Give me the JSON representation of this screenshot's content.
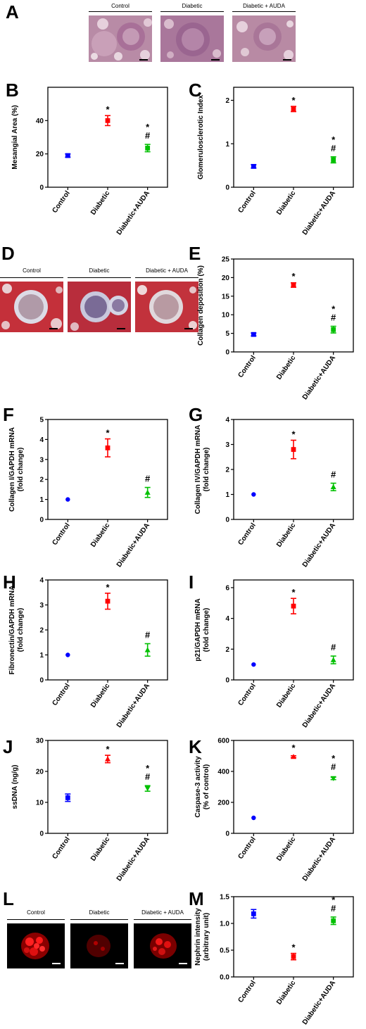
{
  "panel_letters": [
    "A",
    "B",
    "C",
    "D",
    "E",
    "F",
    "G",
    "H",
    "I",
    "J",
    "K",
    "L",
    "M"
  ],
  "micrographs": {
    "A": [
      "Control",
      "Diabetic",
      "Diabetic + AUDA"
    ],
    "D": [
      "Control",
      "Diabetic",
      "Diabetic + AUDA"
    ],
    "L": [
      "Control",
      "Diabetic",
      "Diabetic + AUDA"
    ]
  },
  "chart_data": [
    {
      "panel": "B",
      "type": "scatter",
      "ylabel": [
        "Mesangial Area (%)"
      ],
      "categories": [
        "Control",
        "Diabetic",
        "Diabetic+AUDA"
      ],
      "values": [
        19,
        40,
        23.5
      ],
      "errors": [
        1,
        3,
        2.2
      ],
      "ylim": [
        0,
        60
      ],
      "yticks": [
        0,
        20,
        40
      ],
      "annotations": [
        [],
        [
          "*"
        ],
        [
          "*",
          "#"
        ]
      ],
      "colors": [
        "#0000ff",
        "#ff0000",
        "#00c000"
      ],
      "markers": [
        "square",
        "square",
        "square"
      ]
    },
    {
      "panel": "C",
      "type": "scatter",
      "ylabel": [
        "Glomerulosclerotic Index"
      ],
      "categories": [
        "Control",
        "Diabetic",
        "Diabetic+AUDA"
      ],
      "values": [
        0.48,
        1.8,
        0.63
      ],
      "errors": [
        0.04,
        0.06,
        0.07
      ],
      "ylim": [
        0,
        2.3
      ],
      "yticks": [
        0,
        1,
        2
      ],
      "annotations": [
        [],
        [
          "*"
        ],
        [
          "*",
          "#"
        ]
      ],
      "colors": [
        "#0000ff",
        "#ff0000",
        "#00c000"
      ],
      "markers": [
        "square",
        "square",
        "square"
      ]
    },
    {
      "panel": "E",
      "type": "scatter",
      "ylabel": [
        "Collagen deposition (%)"
      ],
      "categories": [
        "Control",
        "Diabetic",
        "Diabetic+AUDA"
      ],
      "values": [
        4.7,
        18,
        6
      ],
      "errors": [
        0.4,
        0.6,
        0.9
      ],
      "ylim": [
        0,
        25
      ],
      "yticks": [
        0,
        5,
        10,
        15,
        20,
        25
      ],
      "annotations": [
        [],
        [
          "*"
        ],
        [
          "*",
          "#"
        ]
      ],
      "colors": [
        "#0000ff",
        "#ff0000",
        "#00c000"
      ],
      "markers": [
        "square",
        "square",
        "square"
      ]
    },
    {
      "panel": "F",
      "type": "scatter",
      "ylabel": [
        "Collagen I/GAPDH mRNA",
        "(fold change)"
      ],
      "categories": [
        "Control",
        "Diabetic",
        "Diabetic+AUDA"
      ],
      "values": [
        1,
        3.58,
        1.35
      ],
      "errors": [
        0,
        0.45,
        0.25
      ],
      "ylim": [
        0,
        5
      ],
      "yticks": [
        0,
        1,
        2,
        3,
        4,
        5
      ],
      "annotations": [
        [],
        [
          "*"
        ],
        [
          "#"
        ]
      ],
      "colors": [
        "#0000ff",
        "#ff0000",
        "#00c000"
      ],
      "markers": [
        "circle",
        "square",
        "triangle"
      ]
    },
    {
      "panel": "G",
      "type": "scatter",
      "ylabel": [
        "Collagen IV/GAPDH mRNA",
        "(fold change)"
      ],
      "categories": [
        "Control",
        "Diabetic",
        "Diabetic+AUDA"
      ],
      "values": [
        1,
        2.8,
        1.3
      ],
      "errors": [
        0,
        0.37,
        0.15
      ],
      "ylim": [
        0,
        4
      ],
      "yticks": [
        0,
        1,
        2,
        3,
        4
      ],
      "annotations": [
        [],
        [
          "*"
        ],
        [
          "#"
        ]
      ],
      "colors": [
        "#0000ff",
        "#ff0000",
        "#00c000"
      ],
      "markers": [
        "circle",
        "square",
        "triangle"
      ]
    },
    {
      "panel": "H",
      "type": "scatter",
      "ylabel": [
        "Fibronectin/GAPDH mRNA",
        "(fold change)"
      ],
      "categories": [
        "Control",
        "Diabetic",
        "Diabetic+AUDA"
      ],
      "values": [
        1,
        3.15,
        1.2
      ],
      "errors": [
        0,
        0.32,
        0.25
      ],
      "ylim": [
        0,
        4
      ],
      "yticks": [
        0,
        1,
        2,
        3,
        4
      ],
      "annotations": [
        [],
        [
          "*"
        ],
        [
          "#"
        ]
      ],
      "colors": [
        "#0000ff",
        "#ff0000",
        "#00c000"
      ],
      "markers": [
        "circle",
        "square",
        "triangle"
      ]
    },
    {
      "panel": "I",
      "type": "scatter",
      "ylabel": [
        "p21/GAPDH mRNA",
        "(fold change)"
      ],
      "categories": [
        "Control",
        "Diabetic",
        "Diabetic+AUDA"
      ],
      "values": [
        1,
        4.8,
        1.3
      ],
      "errors": [
        0,
        0.5,
        0.25
      ],
      "ylim": [
        0,
        6.5
      ],
      "yticks": [
        0,
        2,
        4,
        6
      ],
      "annotations": [
        [],
        [
          "*"
        ],
        [
          "#"
        ]
      ],
      "colors": [
        "#0000ff",
        "#ff0000",
        "#00c000"
      ],
      "markers": [
        "circle",
        "square",
        "triangle"
      ]
    },
    {
      "panel": "J",
      "type": "scatter",
      "ylabel": [
        "ssDNA (ng/g)"
      ],
      "categories": [
        "Control",
        "Diabetic",
        "Diabetic+AUDA"
      ],
      "values": [
        11.5,
        24,
        14.5
      ],
      "errors": [
        1.2,
        1.2,
        0.9
      ],
      "ylim": [
        0,
        30
      ],
      "yticks": [
        0,
        10,
        20,
        30
      ],
      "annotations": [
        [],
        [
          "*"
        ],
        [
          "*",
          "#"
        ]
      ],
      "colors": [
        "#0000ff",
        "#ff0000",
        "#00c000"
      ],
      "markers": [
        "square",
        "triangle",
        "triangle-down"
      ]
    },
    {
      "panel": "K",
      "type": "scatter",
      "ylabel": [
        "Caspase-3 activity",
        "(% of control)"
      ],
      "categories": [
        "Control",
        "Diabetic",
        "Diabetic+AUDA"
      ],
      "values": [
        100,
        495,
        355
      ],
      "errors": [
        0,
        6,
        8
      ],
      "ylim": [
        0,
        600
      ],
      "yticks": [
        0,
        200,
        400,
        600
      ],
      "annotations": [
        [],
        [
          "*"
        ],
        [
          "*",
          "#"
        ]
      ],
      "colors": [
        "#0000ff",
        "#ff0000",
        "#00c000"
      ],
      "markers": [
        "circle",
        "triangle",
        "triangle-down"
      ]
    },
    {
      "panel": "M",
      "type": "scatter",
      "ylabel": [
        "Nephrin intensity",
        "(arbitrary unit)"
      ],
      "categories": [
        "Control",
        "Diabetic",
        "Diabetic+AUDA"
      ],
      "values": [
        1.18,
        0.38,
        1.05
      ],
      "errors": [
        0.08,
        0.06,
        0.07
      ],
      "ylim": [
        0,
        1.5
      ],
      "yticks": [
        0,
        0.5,
        1,
        1.5
      ],
      "yticklabels": [
        "0.0",
        "0.5",
        "1.0",
        "1.5"
      ],
      "annotations": [
        [],
        [
          "*"
        ],
        [
          "*",
          "#"
        ]
      ],
      "colors": [
        "#0000ff",
        "#ff0000",
        "#00c000"
      ],
      "markers": [
        "square",
        "square",
        "square"
      ]
    }
  ]
}
